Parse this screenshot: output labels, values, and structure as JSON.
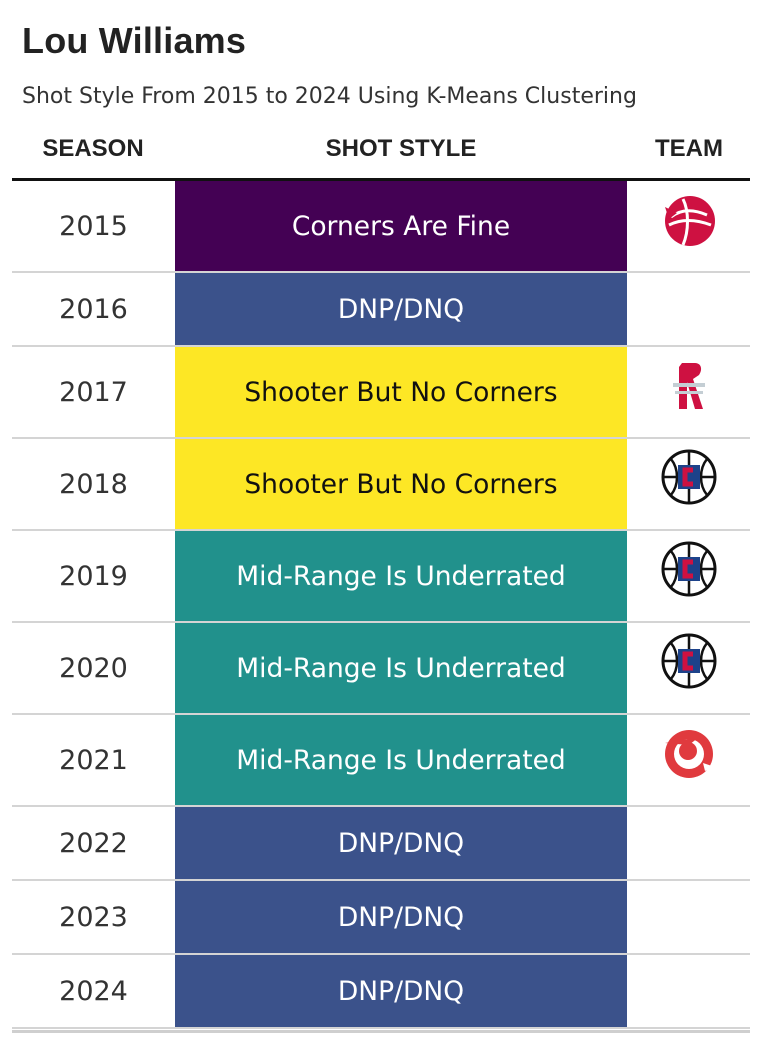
{
  "header": {
    "title": "Lou Williams",
    "subtitle": "Shot Style From 2015 to 2024 Using K-Means Clustering"
  },
  "columns": {
    "season": "SEASON",
    "shot_style": "SHOT STYLE",
    "team": "TEAM"
  },
  "style_colors": {
    "Corners Are Fine": {
      "bg": "#440154",
      "fg": "#ffffff"
    },
    "DNP/DNQ": {
      "bg": "#3b528b",
      "fg": "#ffffff"
    },
    "Shooter But No Corners": {
      "bg": "#fde725",
      "fg": "#111111"
    },
    "Mid-Range Is Underrated": {
      "bg": "#21918c",
      "fg": "#ffffff"
    }
  },
  "team_logo_colors": {
    "raptors-logo-icon": "#ce1141",
    "rockets-logo-icon": "#ce1141",
    "clippers-logo-icon": "#1d428a",
    "hawks-logo-icon": "#e03a3e"
  },
  "chart_data": {
    "type": "table",
    "title": "Lou Williams",
    "subtitle": "Shot Style From 2015 to 2024 Using K-Means Clustering",
    "columns": [
      "SEASON",
      "SHOT STYLE",
      "TEAM"
    ],
    "rows": [
      {
        "season": "2015",
        "shot_style": "Corners Are Fine",
        "team_icon": "raptors-logo-icon"
      },
      {
        "season": "2016",
        "shot_style": "DNP/DNQ",
        "team_icon": ""
      },
      {
        "season": "2017",
        "shot_style": "Shooter But No Corners",
        "team_icon": "rockets-logo-icon"
      },
      {
        "season": "2018",
        "shot_style": "Shooter But No Corners",
        "team_icon": "clippers-logo-icon"
      },
      {
        "season": "2019",
        "shot_style": "Mid-Range Is Underrated",
        "team_icon": "clippers-logo-icon"
      },
      {
        "season": "2020",
        "shot_style": "Mid-Range Is Underrated",
        "team_icon": "clippers-logo-icon"
      },
      {
        "season": "2021",
        "shot_style": "Mid-Range Is Underrated",
        "team_icon": "hawks-logo-icon"
      },
      {
        "season": "2022",
        "shot_style": "DNP/DNQ",
        "team_icon": ""
      },
      {
        "season": "2023",
        "shot_style": "DNP/DNQ",
        "team_icon": ""
      },
      {
        "season": "2024",
        "shot_style": "DNP/DNQ",
        "team_icon": ""
      }
    ]
  }
}
